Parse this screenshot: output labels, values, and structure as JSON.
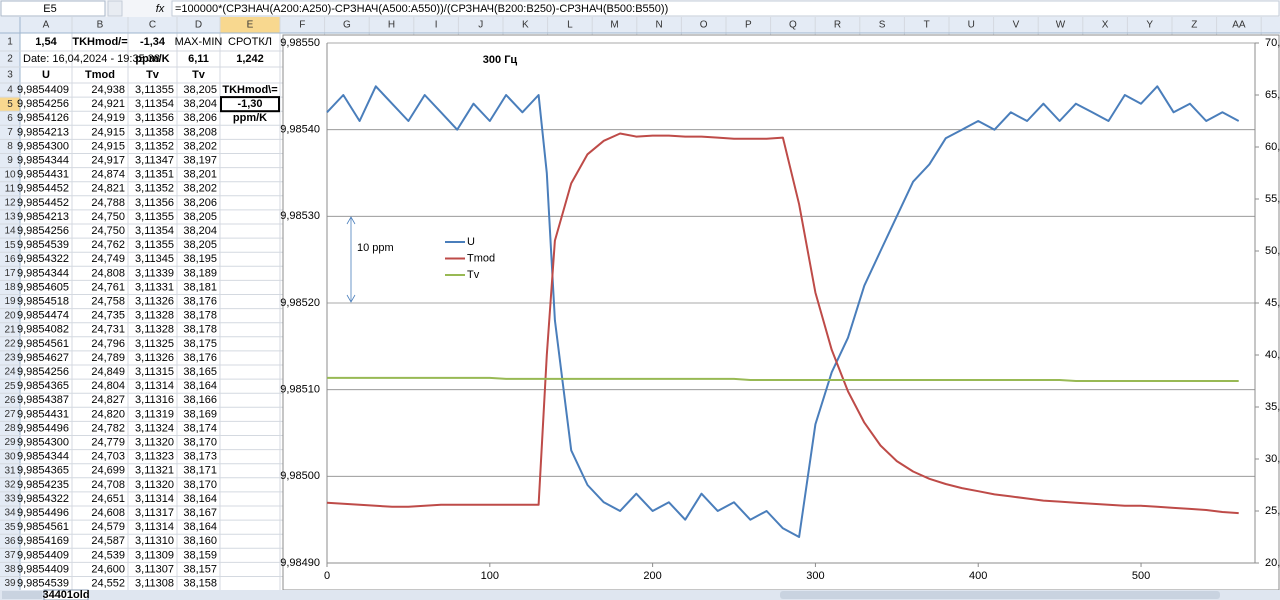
{
  "formula_bar": {
    "cell": "E5",
    "fx": "fx",
    "formula": "=100000*(СРЗНАЧ(A200:A250)-СРЗНАЧ(A500:A550))/(СРЗНАЧ(B200:B250)-СРЗНАЧ(B500:B550))"
  },
  "columns": [
    "A",
    "B",
    "C",
    "D",
    "E",
    "F",
    "G",
    "H",
    "I",
    "J",
    "K",
    "L",
    "M",
    "N",
    "O",
    "P",
    "Q",
    "R",
    "S",
    "T",
    "U",
    "V",
    "W",
    "X",
    "Y",
    "Z",
    "AA"
  ],
  "rows": [
    {
      "n": "1",
      "A": "1,54",
      "B": "TKHmod/=",
      "C": "-1,34",
      "D": "MAX-MIN",
      "E": "СРОТКЛ"
    },
    {
      "n": "2",
      "A": "Date: 16,04,2024 - 19:35:38",
      "C": "ppm/K",
      "D": "6,11",
      "E": "1,242"
    },
    {
      "n": "3",
      "A": "U",
      "B": "Tmod",
      "C": "Tv",
      "D": "Tv"
    },
    {
      "n": "4",
      "A": "9,9854409",
      "B": "24,938",
      "C": "3,11355",
      "D": "38,205",
      "E": "TKHmod\\="
    },
    {
      "n": "5",
      "A": "9,9854256",
      "B": "24,921",
      "C": "3,11354",
      "D": "38,204",
      "E": "-1,30"
    },
    {
      "n": "6",
      "A": "9,9854126",
      "B": "24,919",
      "C": "3,11356",
      "D": "38,206",
      "E": "ppm/K"
    },
    {
      "n": "7",
      "A": "9,9854213",
      "B": "24,915",
      "C": "3,11358",
      "D": "38,208"
    },
    {
      "n": "8",
      "A": "9,9854300",
      "B": "24,915",
      "C": "3,11352",
      "D": "38,202"
    },
    {
      "n": "9",
      "A": "9,9854344",
      "B": "24,917",
      "C": "3,11347",
      "D": "38,197"
    },
    {
      "n": "10",
      "A": "9,9854431",
      "B": "24,874",
      "C": "3,11351",
      "D": "38,201"
    },
    {
      "n": "11",
      "A": "9,9854452",
      "B": "24,821",
      "C": "3,11352",
      "D": "38,202"
    },
    {
      "n": "12",
      "A": "9,9854452",
      "B": "24,788",
      "C": "3,11356",
      "D": "38,206"
    },
    {
      "n": "13",
      "A": "9,9854213",
      "B": "24,750",
      "C": "3,11355",
      "D": "38,205"
    },
    {
      "n": "14",
      "A": "9,9854256",
      "B": "24,750",
      "C": "3,11354",
      "D": "38,204"
    },
    {
      "n": "15",
      "A": "9,9854539",
      "B": "24,762",
      "C": "3,11355",
      "D": "38,205"
    },
    {
      "n": "16",
      "A": "9,9854322",
      "B": "24,749",
      "C": "3,11345",
      "D": "38,195"
    },
    {
      "n": "17",
      "A": "9,9854344",
      "B": "24,808",
      "C": "3,11339",
      "D": "38,189"
    },
    {
      "n": "18",
      "A": "9,9854605",
      "B": "24,761",
      "C": "3,11331",
      "D": "38,181"
    },
    {
      "n": "19",
      "A": "9,9854518",
      "B": "24,758",
      "C": "3,11326",
      "D": "38,176"
    },
    {
      "n": "20",
      "A": "9,9854474",
      "B": "24,735",
      "C": "3,11328",
      "D": "38,178"
    },
    {
      "n": "21",
      "A": "9,9854082",
      "B": "24,731",
      "C": "3,11328",
      "D": "38,178"
    },
    {
      "n": "22",
      "A": "9,9854561",
      "B": "24,796",
      "C": "3,11325",
      "D": "38,175"
    },
    {
      "n": "23",
      "A": "9,9854627",
      "B": "24,789",
      "C": "3,11326",
      "D": "38,176"
    },
    {
      "n": "24",
      "A": "9,9854256",
      "B": "24,849",
      "C": "3,11315",
      "D": "38,165"
    },
    {
      "n": "25",
      "A": "9,9854365",
      "B": "24,804",
      "C": "3,11314",
      "D": "38,164"
    },
    {
      "n": "26",
      "A": "9,9854387",
      "B": "24,827",
      "C": "3,11316",
      "D": "38,166"
    },
    {
      "n": "27",
      "A": "9,9854431",
      "B": "24,820",
      "C": "3,11319",
      "D": "38,169"
    },
    {
      "n": "28",
      "A": "9,9854496",
      "B": "24,782",
      "C": "3,11324",
      "D": "38,174"
    },
    {
      "n": "29",
      "A": "9,9854300",
      "B": "24,779",
      "C": "3,11320",
      "D": "38,170"
    },
    {
      "n": "30",
      "A": "9,9854344",
      "B": "24,703",
      "C": "3,11323",
      "D": "38,173"
    },
    {
      "n": "31",
      "A": "9,9854365",
      "B": "24,699",
      "C": "3,11321",
      "D": "38,171"
    },
    {
      "n": "32",
      "A": "9,9854235",
      "B": "24,708",
      "C": "3,11320",
      "D": "38,170"
    },
    {
      "n": "33",
      "A": "9,9854322",
      "B": "24,651",
      "C": "3,11314",
      "D": "38,164"
    },
    {
      "n": "34",
      "A": "9,9854496",
      "B": "24,608",
      "C": "3,11317",
      "D": "38,167"
    },
    {
      "n": "35",
      "A": "9,9854561",
      "B": "24,579",
      "C": "3,11314",
      "D": "38,164"
    },
    {
      "n": "36",
      "A": "9,9854169",
      "B": "24,587",
      "C": "3,11310",
      "D": "38,160"
    },
    {
      "n": "37",
      "A": "9,9854409",
      "B": "24,539",
      "C": "3,11309",
      "D": "38,159"
    },
    {
      "n": "38",
      "A": "9,9854409",
      "B": "24,600",
      "C": "3,11307",
      "D": "38,157"
    },
    {
      "n": "39",
      "A": "9,9854539",
      "B": "24,552",
      "C": "3,11308",
      "D": "38,158"
    }
  ],
  "sheet_tab": "34401old",
  "chart_data": {
    "type": "line",
    "title": "300 Гц",
    "annotation": "10 ppm",
    "x": [
      0,
      10,
      20,
      30,
      40,
      50,
      60,
      70,
      80,
      90,
      100,
      110,
      120,
      130,
      135,
      140,
      150,
      160,
      170,
      180,
      190,
      200,
      210,
      220,
      230,
      240,
      250,
      260,
      270,
      280,
      290,
      300,
      310,
      320,
      330,
      340,
      350,
      360,
      370,
      380,
      390,
      400,
      410,
      420,
      430,
      440,
      450,
      460,
      470,
      480,
      490,
      500,
      510,
      520,
      530,
      540,
      550,
      560
    ],
    "xlim": [
      0,
      570
    ],
    "xticks": [
      0,
      100,
      200,
      300,
      400,
      500
    ],
    "ylim": [
      9.9849,
      9.9855
    ],
    "yticks": [
      {
        "value": 9.9849,
        "label": "9,98490"
      },
      {
        "value": 9.985,
        "label": "9,98500"
      },
      {
        "value": 9.9851,
        "label": "9,98510"
      },
      {
        "value": 9.9852,
        "label": "9,98520"
      },
      {
        "value": 9.9853,
        "label": "9,98530"
      },
      {
        "value": 9.9854,
        "label": "9,98540"
      },
      {
        "value": 9.9855,
        "label": "9,98550"
      }
    ],
    "y2lim": [
      20,
      70
    ],
    "y2ticks": [
      {
        "value": 20,
        "label": "20,"
      },
      {
        "value": 25,
        "label": "25,"
      },
      {
        "value": 30,
        "label": "30,"
      },
      {
        "value": 35,
        "label": "35,"
      },
      {
        "value": 40,
        "label": "40,"
      },
      {
        "value": 45,
        "label": "45,"
      },
      {
        "value": 50,
        "label": "50,"
      },
      {
        "value": 55,
        "label": "55,"
      },
      {
        "value": 60,
        "label": "60,"
      },
      {
        "value": 65,
        "label": "65,"
      },
      {
        "value": 70,
        "label": "70,"
      }
    ],
    "grid": true,
    "series": [
      {
        "name": "U",
        "color": "#4a7ebb",
        "values": [
          9.98542,
          9.98544,
          9.98541,
          9.98545,
          9.98543,
          9.98541,
          9.98544,
          9.98542,
          9.9854,
          9.98543,
          9.98541,
          9.98544,
          9.98542,
          9.98544,
          9.98535,
          9.98518,
          9.98503,
          9.98499,
          9.98497,
          9.98496,
          9.98498,
          9.98496,
          9.98497,
          9.98495,
          9.98498,
          9.98496,
          9.98497,
          9.98495,
          9.98496,
          9.98494,
          9.98493,
          9.98506,
          9.98512,
          9.98516,
          9.98522,
          9.98526,
          9.9853,
          9.98534,
          9.98536,
          9.98539,
          9.9854,
          9.98541,
          9.9854,
          9.98542,
          9.98541,
          9.98543,
          9.98541,
          9.98543,
          9.98542,
          9.98541,
          9.98544,
          9.98543,
          9.98545,
          9.98542,
          9.98543,
          9.98541,
          9.98542,
          9.98541
        ]
      },
      {
        "name": "Tmod",
        "color": "#be4b48",
        "axis": "y2",
        "values": [
          25.8,
          25.7,
          25.6,
          25.5,
          25.4,
          25.4,
          25.5,
          25.6,
          25.6,
          25.6,
          25.6,
          25.6,
          25.6,
          25.6,
          40,
          51,
          56.5,
          59.3,
          60.6,
          61.3,
          61,
          61.1,
          61.1,
          61,
          61,
          60.9,
          60.8,
          60.8,
          60.8,
          60.9,
          54.5,
          46,
          40.5,
          36.5,
          33.5,
          31.3,
          29.8,
          28.8,
          28.1,
          27.6,
          27.2,
          26.9,
          26.6,
          26.4,
          26.2,
          26,
          25.9,
          25.8,
          25.7,
          25.6,
          25.5,
          25.5,
          25.4,
          25.3,
          25.2,
          25.1,
          24.9,
          24.8
        ]
      },
      {
        "name": "Tv",
        "color": "#98b954",
        "axis": "y2",
        "values": [
          37.8,
          37.8,
          37.8,
          37.8,
          37.8,
          37.8,
          37.8,
          37.8,
          37.8,
          37.8,
          37.8,
          37.7,
          37.7,
          37.7,
          37.7,
          37.7,
          37.7,
          37.7,
          37.7,
          37.7,
          37.7,
          37.7,
          37.7,
          37.7,
          37.7,
          37.7,
          37.7,
          37.6,
          37.6,
          37.6,
          37.6,
          37.6,
          37.6,
          37.6,
          37.6,
          37.6,
          37.6,
          37.6,
          37.6,
          37.6,
          37.6,
          37.6,
          37.6,
          37.6,
          37.6,
          37.6,
          37.6,
          37.5,
          37.5,
          37.5,
          37.5,
          37.5,
          37.5,
          37.5,
          37.5,
          37.5,
          37.5,
          37.5
        ]
      }
    ]
  }
}
